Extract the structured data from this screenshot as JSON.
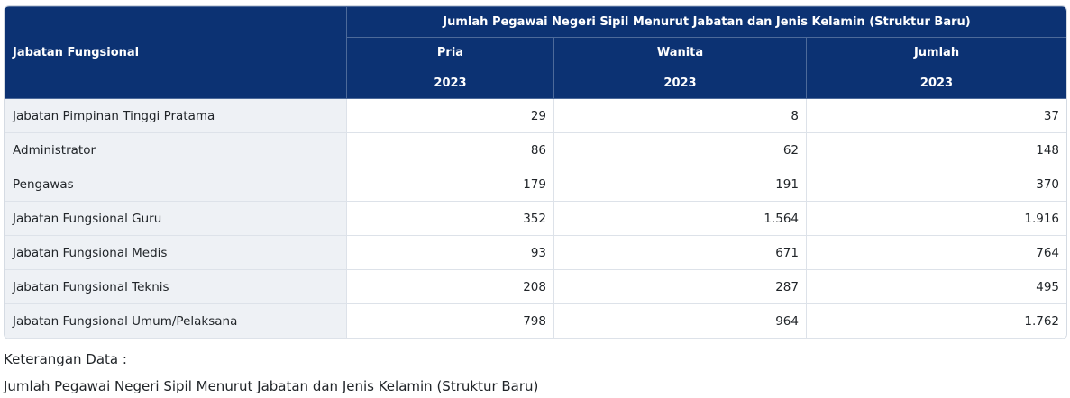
{
  "table": {
    "row_header_label": "Jabatan Fungsional",
    "group_title": "Jumlah Pegawai Negeri Sipil Menurut Jabatan dan Jenis Kelamin (Struktur Baru)",
    "columns": [
      "Pria",
      "Wanita",
      "Jumlah"
    ],
    "years": [
      "2023",
      "2023",
      "2023"
    ],
    "rows": [
      {
        "label": "Jabatan Pimpinan Tinggi Pratama",
        "values": [
          "29",
          "8",
          "37"
        ]
      },
      {
        "label": "Administrator",
        "values": [
          "86",
          "62",
          "148"
        ]
      },
      {
        "label": "Pengawas",
        "values": [
          "179",
          "191",
          "370"
        ]
      },
      {
        "label": "Jabatan Fungsional Guru",
        "values": [
          "352",
          "1.564",
          "1.916"
        ]
      },
      {
        "label": "Jabatan Fungsional Medis",
        "values": [
          "93",
          "671",
          "764"
        ]
      },
      {
        "label": "Jabatan Fungsional Teknis",
        "values": [
          "208",
          "287",
          "495"
        ]
      },
      {
        "label": "Jabatan Fungsional Umum/Pelaksana",
        "values": [
          "798",
          "964",
          "1.762"
        ]
      }
    ]
  },
  "notes": {
    "caption": "Keterangan Data :",
    "description": "Jumlah Pegawai Negeri Sipil Menurut Jabatan dan Jenis Kelamin (Struktur Baru)"
  },
  "colors": {
    "header_bg": "#0c3273",
    "label_bg": "#eef1f5"
  }
}
